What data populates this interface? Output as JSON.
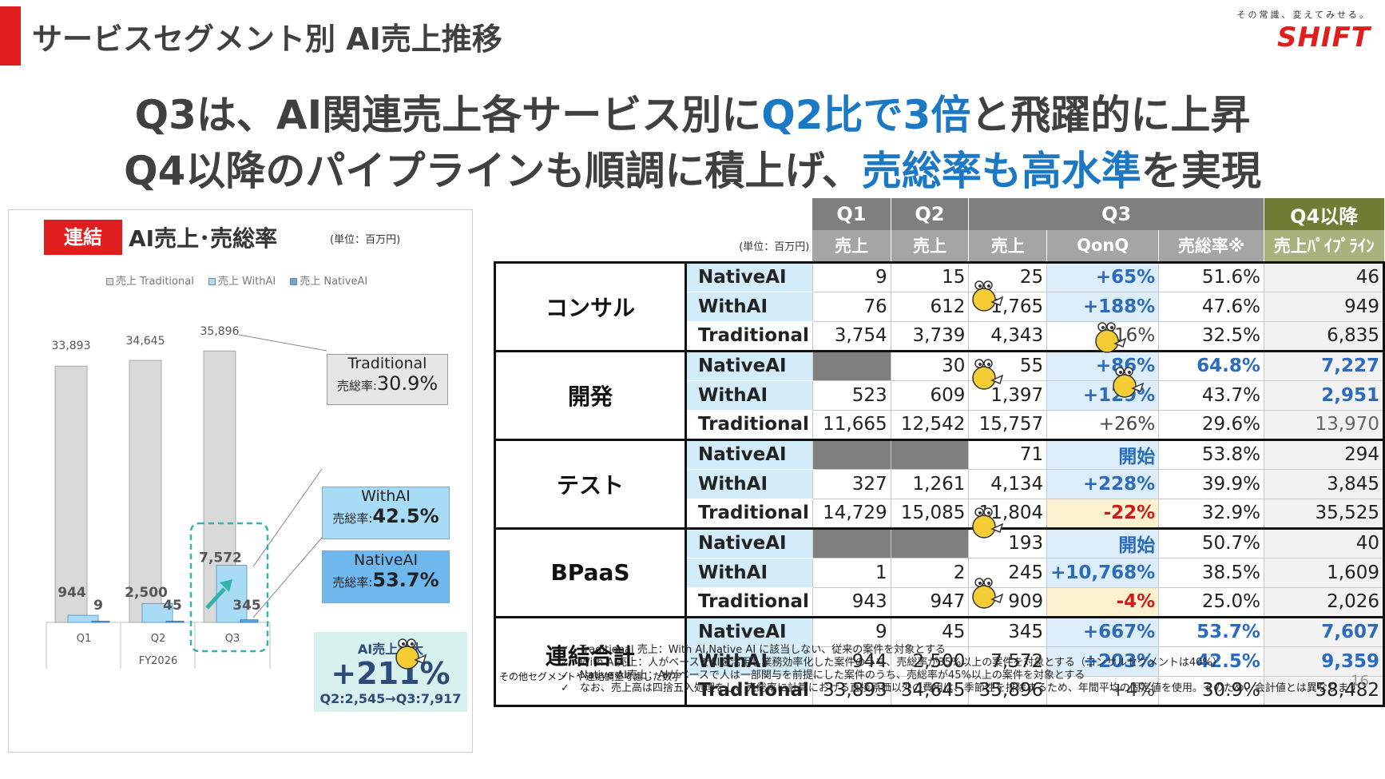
{
  "header": {
    "title": "サービスセグメント別 AI売上推移",
    "logo_tagline": "その常識、変えてみせる。",
    "logo_brand": "SHIFT"
  },
  "headline": {
    "line1_a": "Q3は、AI関連売上各サービス別に",
    "line1_hl": "Q2比で3倍",
    "line1_b": "と飛躍的に上昇",
    "line2_a": "Q4以降のパイプラインも順調に積上げ、",
    "line2_hl": "売総率も高水準",
    "line2_b": "を実現"
  },
  "left_panel": {
    "badge": "連結",
    "title": "AI売上･売総率",
    "unit": "(単位：百万円)",
    "callouts": {
      "traditional_name": "Traditional",
      "traditional_rate_label": "売総率:",
      "traditional_rate": "30.9%",
      "withai_name": "WithAI",
      "withai_rate_label": "売総率:",
      "withai_rate": "42.5%",
      "nativeai_name": "NativeAI",
      "nativeai_rate_label": "売総率:",
      "nativeai_rate": "53.7%"
    },
    "growth": {
      "label": "AI売上拡大",
      "value": "+211%",
      "detail": "Q2:2,545→Q3:7,917"
    }
  },
  "chart_data": {
    "type": "bar",
    "categories": [
      "Q1",
      "Q2",
      "Q3"
    ],
    "xlabel": "FY2026",
    "series": [
      {
        "name": "売上 Traditional",
        "values": [
          33893,
          34645,
          35896
        ],
        "labels": [
          "33,893",
          "34,645",
          "35,896"
        ],
        "color": "#d9d9d9"
      },
      {
        "name": "売上 WithAI",
        "values": [
          944,
          2500,
          7572
        ],
        "labels": [
          "944",
          "2,500",
          "7,572"
        ],
        "color": "#a8dcf6"
      },
      {
        "name": "売上 NativeAI",
        "values": [
          9,
          45,
          345
        ],
        "labels": [
          "9",
          "45",
          "345"
        ],
        "color": "#5ea9e6"
      }
    ]
  },
  "table": {
    "unit": "(単位：百万円)",
    "headers": {
      "q1": "Q1",
      "q2": "Q2",
      "q3": "Q3",
      "q4": "Q4以降",
      "sales": "売上",
      "qoq": "QonQ",
      "rate": "売総率※",
      "pipeline": "売上ﾊﾟｲﾌﾟﾗｲﾝ"
    },
    "segments": [
      {
        "name": "コンサル",
        "sub": "",
        "rows": [
          {
            "type": "NativeAI",
            "q1": "9",
            "q2": "15",
            "q3": "25",
            "qoq": "+65%",
            "rate": "51.6%",
            "q4": "46"
          },
          {
            "type": "WithAI",
            "q1": "76",
            "q2": "612",
            "q3": "1,765",
            "qoq": "+188%",
            "rate": "47.6%",
            "q4": "949"
          },
          {
            "type": "Traditional",
            "q1": "3,754",
            "q2": "3,739",
            "q3": "4,343",
            "qoq": "+16%",
            "rate": "32.5%",
            "q4": "6,835"
          }
        ]
      },
      {
        "name": "開発",
        "sub": "",
        "rows": [
          {
            "type": "NativeAI",
            "q1": "",
            "q2": "30",
            "q3": "55",
            "qoq": "+86%",
            "rate": "64.8%",
            "q4": "7,227"
          },
          {
            "type": "WithAI",
            "q1": "523",
            "q2": "609",
            "q3": "1,397",
            "qoq": "+129%",
            "rate": "43.7%",
            "q4": "2,951"
          },
          {
            "type": "Traditional",
            "q1": "11,665",
            "q2": "12,542",
            "q3": "15,757",
            "qoq": "+26%",
            "rate": "29.6%",
            "q4": "13,970"
          }
        ]
      },
      {
        "name": "テスト",
        "sub": "",
        "rows": [
          {
            "type": "NativeAI",
            "q1": "",
            "q2": "",
            "q3": "71",
            "qoq": "開始",
            "rate": "53.8%",
            "q4": "294"
          },
          {
            "type": "WithAI",
            "q1": "327",
            "q2": "1,261",
            "q3": "4,134",
            "qoq": "+228%",
            "rate": "39.9%",
            "q4": "3,845"
          },
          {
            "type": "Traditional",
            "q1": "14,729",
            "q2": "15,085",
            "q3": "11,804",
            "qoq": "-22%",
            "rate": "32.9%",
            "q4": "35,525"
          }
        ]
      },
      {
        "name": "BPaaS",
        "sub": "",
        "rows": [
          {
            "type": "NativeAI",
            "q1": "",
            "q2": "",
            "q3": "193",
            "qoq": "開始",
            "rate": "50.7%",
            "q4": "40"
          },
          {
            "type": "WithAI",
            "q1": "1",
            "q2": "2",
            "q3": "245",
            "qoq": "+10,768%",
            "rate": "38.5%",
            "q4": "1,609"
          },
          {
            "type": "Traditional",
            "q1": "943",
            "q2": "947",
            "q3": "909",
            "qoq": "-4%",
            "rate": "25.0%",
            "q4": "2,026"
          }
        ]
      },
      {
        "name": "連結合計",
        "sub": "その他セグメントや連結調整考慮した数字",
        "rows": [
          {
            "type": "NativeAI",
            "q1": "9",
            "q2": "45",
            "q3": "345",
            "qoq": "+667%",
            "rate": "53.7%",
            "q4": "7,607"
          },
          {
            "type": "WithAI",
            "q1": "944",
            "q2": "2,500",
            "q3": "7,572",
            "qoq": "+203%",
            "rate": "42.5%",
            "q4": "9,359"
          },
          {
            "type": "Traditional",
            "q1": "33,893",
            "q2": "34,645",
            "q3": "35,896",
            "qoq": "+4%",
            "rate": "30.9%",
            "q4": "58,482"
          }
        ]
      }
    ]
  },
  "notes": [
    "✓　Traditional 売上：With AI,Native AI に該当しない、従来の案件を対象とする",
    "✓　With AI売上：人がベースでAIを活用し業務効率化した案件のうち、売総率が35%以上の案件を対象とする（コンサルセグメントは40%）",
    "✓　Native AI売上：AIがベースで人は一部関与を前提にした案件のうち、売総率が45%以上の案件を対象とする",
    "✓　なお、売上高は四捨五入処理をし、売総率に計算における直接原価以外の費用は、季節性を排除するため、年間平均の固定値を使用。そのため、会計値とは異なります"
  ],
  "page_number": "16"
}
